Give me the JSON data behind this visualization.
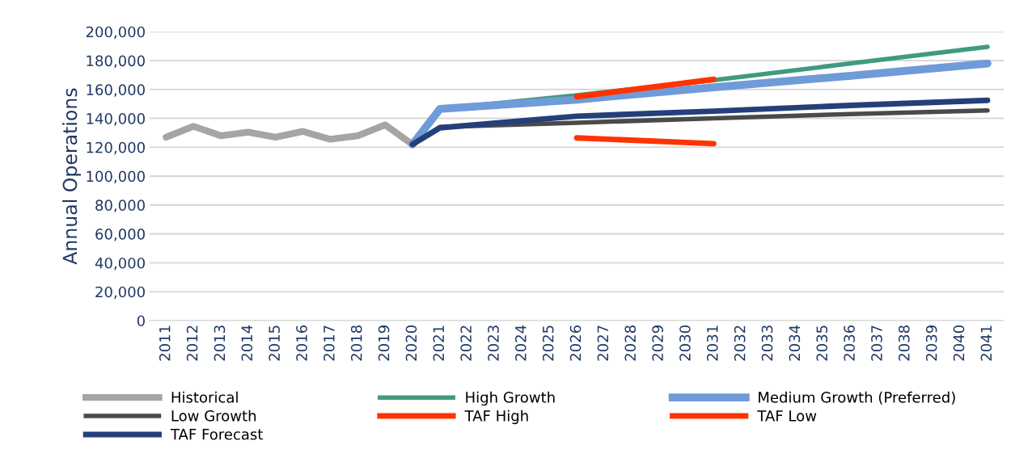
{
  "chart_data": {
    "type": "line",
    "ylabel": "Annual Operations",
    "categories": [
      "2011",
      "2012",
      "2013",
      "2014",
      "2015",
      "2016",
      "2017",
      "2018",
      "2019",
      "2020",
      "2021",
      "2022",
      "2023",
      "2024",
      "2025",
      "2026",
      "2027",
      "2028",
      "2029",
      "2030",
      "2031",
      "2032",
      "2033",
      "2034",
      "2035",
      "2036",
      "2037",
      "2038",
      "2039",
      "2040",
      "2041"
    ],
    "ylim": [
      0,
      200000
    ],
    "yticks": [
      {
        "value": 0,
        "label": "0"
      },
      {
        "value": 20000,
        "label": "20,000"
      },
      {
        "value": 40000,
        "label": "40,000"
      },
      {
        "value": 60000,
        "label": "60,000"
      },
      {
        "value": 80000,
        "label": "80,000"
      },
      {
        "value": 100000,
        "label": "100,000"
      },
      {
        "value": 120000,
        "label": "120,000"
      },
      {
        "value": 140000,
        "label": "140,000"
      },
      {
        "value": 160000,
        "label": "160,000"
      },
      {
        "value": 180000,
        "label": "180,000"
      },
      {
        "value": 200000,
        "label": "200,000"
      }
    ],
    "grid": "y",
    "legend": "bottom",
    "marker": "none",
    "line_style": "solid",
    "series": [
      {
        "name": "Historical",
        "color": "#a5a5a5",
        "values": [
          127000,
          134500,
          128000,
          130500,
          127000,
          131000,
          125500,
          128000,
          135500,
          122000,
          null,
          null,
          null,
          null,
          null,
          null,
          null,
          null,
          null,
          null,
          null,
          null,
          null,
          null,
          null,
          null,
          null,
          null,
          null,
          null,
          null
        ]
      },
      {
        "name": "High Growth",
        "color": "#3f9b7f",
        "values": [
          null,
          null,
          null,
          null,
          null,
          null,
          null,
          null,
          null,
          122000,
          146500,
          null,
          null,
          null,
          null,
          156000,
          null,
          null,
          null,
          null,
          166500,
          null,
          null,
          null,
          null,
          178000,
          null,
          null,
          null,
          null,
          189500
        ]
      },
      {
        "name": "Medium Growth (Preferred)",
        "color": "#6f9bd8",
        "values": [
          null,
          null,
          null,
          null,
          null,
          null,
          null,
          null,
          null,
          122000,
          146500,
          null,
          null,
          null,
          null,
          153000,
          null,
          null,
          null,
          null,
          161500,
          null,
          null,
          null,
          null,
          169500,
          null,
          null,
          null,
          null,
          178000
        ]
      },
      {
        "name": "Low Growth",
        "color": "#4a4a4a",
        "values": [
          null,
          null,
          null,
          null,
          null,
          null,
          null,
          null,
          null,
          122000,
          134000,
          null,
          null,
          null,
          null,
          137000,
          null,
          null,
          null,
          null,
          140000,
          null,
          null,
          null,
          null,
          143000,
          null,
          null,
          null,
          null,
          145500
        ]
      },
      {
        "name": "TAF High",
        "color": "#ff3300",
        "values": [
          null,
          null,
          null,
          null,
          null,
          null,
          null,
          null,
          null,
          null,
          null,
          null,
          null,
          null,
          null,
          155000,
          null,
          null,
          null,
          null,
          167000,
          null,
          null,
          null,
          null,
          null,
          null,
          null,
          null,
          null,
          null
        ]
      },
      {
        "name": "TAF Low",
        "color": "#ff3300",
        "values": [
          null,
          null,
          null,
          null,
          null,
          null,
          null,
          null,
          null,
          null,
          null,
          null,
          null,
          null,
          null,
          126500,
          null,
          null,
          null,
          null,
          122500,
          null,
          null,
          null,
          null,
          null,
          null,
          null,
          null,
          null,
          null
        ]
      },
      {
        "name": "TAF Forecast",
        "color": "#24407a",
        "values": [
          null,
          null,
          null,
          null,
          null,
          null,
          null,
          null,
          null,
          122000,
          133500,
          null,
          null,
          null,
          null,
          141500,
          null,
          null,
          null,
          null,
          145000,
          null,
          null,
          null,
          null,
          149000,
          null,
          null,
          null,
          null,
          152500
        ]
      }
    ]
  }
}
